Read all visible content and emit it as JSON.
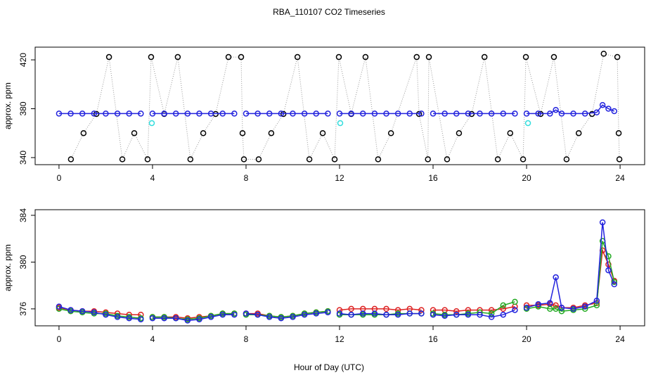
{
  "chart_data": [
    {
      "type": "scatter",
      "title": "RBA_110107  CO2 Timeseries",
      "ylabel": "approx. ppm",
      "xlim": [
        -1.02,
        25.05
      ],
      "xticks": [
        0,
        4,
        8,
        12,
        16,
        20,
        24
      ],
      "ylim": [
        334.2,
        430.4
      ],
      "yticks": [
        340,
        380,
        420
      ],
      "series": [
        {
          "color": "#000000",
          "line_color": "#999999",
          "line_style": "dotted",
          "x": [
            0.51,
            1.05,
            1.6,
            2.14,
            2.71,
            3.22,
            3.79,
            3.94,
            4.5,
            5.08,
            5.62,
            6.17,
            6.7,
            7.25,
            7.79,
            7.85,
            7.91,
            8.54,
            9.08,
            9.6,
            10.2,
            10.71,
            11.28,
            11.79,
            11.97,
            12.5,
            13.11,
            13.65,
            14.2,
            15.3,
            15.4,
            15.78,
            15.82,
            16.6,
            17.11,
            17.65,
            18.2,
            18.77,
            19.3,
            19.85,
            19.97,
            20.6,
            21.17,
            21.71,
            22.23,
            22.8,
            23.3,
            23.88,
            23.94,
            23.97
          ],
          "values": [
            338.6,
            360,
            375.7,
            422.3,
            338.6,
            360,
            338.6,
            422.3,
            375.7,
            422.3,
            338.6,
            360,
            375.7,
            422.3,
            422.3,
            360,
            338.6,
            338.6,
            360,
            375.7,
            422.3,
            338.6,
            360,
            338.6,
            422.3,
            375.7,
            422.3,
            338.6,
            360,
            422.3,
            375.7,
            338.6,
            422.3,
            338.6,
            360,
            375.7,
            422.3,
            338.6,
            360,
            338.6,
            422.3,
            375.7,
            422.3,
            338.6,
            360,
            375.7,
            425,
            422.3,
            360,
            338.6
          ]
        },
        {
          "color": "#2222dd",
          "line_style": "solid",
          "x": [
            0,
            0.5,
            1,
            1.5,
            2,
            2.5,
            3,
            3.5,
            3.9,
            4,
            4.5,
            5,
            5.5,
            6,
            6.5,
            7,
            7.5,
            7.9,
            8,
            8.5,
            9,
            9.5,
            10,
            10.5,
            11,
            11.5,
            11.9,
            12,
            12.5,
            13,
            13.5,
            14,
            14.5,
            15,
            15.5,
            15.9,
            16,
            16.5,
            17,
            17.5,
            18,
            18.5,
            19,
            19.5,
            19.9,
            20,
            20.5,
            21,
            21.25,
            21.5,
            22,
            22.5,
            23,
            23.25,
            23.5,
            23.75
          ],
          "values": [
            376,
            376,
            376,
            376,
            376,
            376,
            376,
            376,
            null,
            376,
            376,
            376,
            376,
            376,
            376,
            376,
            376,
            null,
            376,
            376,
            376,
            376,
            376,
            376,
            376,
            376,
            null,
            376,
            376,
            376,
            376,
            376,
            376,
            376,
            376,
            null,
            376,
            376,
            376,
            376,
            376,
            376,
            376,
            376,
            null,
            376,
            376,
            376,
            379,
            376,
            376,
            376,
            377,
            383,
            380,
            378
          ]
        },
        {
          "color": "#33dddd",
          "x": [
            3.97,
            12.03,
            20.06
          ],
          "values": [
            368.2,
            368.2,
            368.2
          ]
        }
      ]
    },
    {
      "type": "line",
      "ylabel": "approx. ppm",
      "xlabel": "Hour of Day (UTC)",
      "xlim": [
        -1.02,
        25.05
      ],
      "xticks": [
        0,
        4,
        8,
        12,
        16,
        20,
        24
      ],
      "ylim": [
        374.55,
        384.48
      ],
      "yticks": [
        376,
        380,
        384
      ],
      "series": [
        {
          "color": "#dd2222",
          "line_style": "solid",
          "x": [
            0,
            0.5,
            1,
            1.5,
            2,
            2.5,
            3,
            3.5,
            3.9,
            4,
            4.5,
            5,
            5.5,
            6,
            6.5,
            7,
            7.5,
            7.9,
            8,
            8.5,
            9,
            9.5,
            10,
            10.5,
            11,
            11.5,
            11.9,
            12,
            12.5,
            13,
            13.5,
            14,
            14.5,
            15,
            15.5,
            15.9,
            16,
            16.5,
            17,
            17.5,
            18,
            18.5,
            19,
            19.5,
            19.9,
            20,
            20.5,
            21,
            21.25,
            21.5,
            22,
            22.5,
            23,
            23.25,
            23.5,
            23.75
          ],
          "values": [
            376.1,
            375.9,
            375.8,
            375.8,
            375.7,
            375.6,
            375.5,
            375.5,
            null,
            375.3,
            375.3,
            375.3,
            375.2,
            375.3,
            375.4,
            375.6,
            375.6,
            null,
            375.6,
            375.6,
            375.4,
            375.3,
            375.4,
            375.6,
            375.7,
            375.8,
            null,
            375.9,
            376.0,
            376.0,
            376.0,
            376.0,
            375.9,
            376.0,
            375.9,
            null,
            375.9,
            375.9,
            375.8,
            375.9,
            375.9,
            375.9,
            376.0,
            376.2,
            null,
            376.3,
            376.3,
            376.4,
            376.3,
            376.1,
            376.1,
            376.3,
            376.5,
            381.0,
            379.8,
            378.4
          ]
        },
        {
          "color": "#22aa22",
          "line_style": "solid",
          "x": [
            0,
            0.5,
            1,
            1.5,
            2,
            2.5,
            3,
            3.5,
            3.9,
            4,
            4.5,
            5,
            5.5,
            6,
            6.5,
            7,
            7.5,
            7.9,
            8,
            8.5,
            9,
            9.5,
            10,
            10.5,
            11,
            11.5,
            11.9,
            12,
            12.5,
            13,
            13.5,
            14,
            14.5,
            15,
            15.5,
            15.9,
            16,
            16.5,
            17,
            17.5,
            18,
            18.5,
            19,
            19.5,
            19.9,
            20,
            20.5,
            21,
            21.25,
            21.5,
            22,
            22.5,
            23,
            23.25,
            23.5,
            23.75
          ],
          "values": [
            376.0,
            375.8,
            375.7,
            375.6,
            375.6,
            375.4,
            375.3,
            375.2,
            null,
            375.3,
            375.3,
            375.2,
            375.1,
            375.2,
            375.4,
            375.6,
            375.6,
            null,
            375.5,
            375.5,
            375.4,
            375.3,
            375.4,
            375.6,
            375.7,
            375.8,
            null,
            375.5,
            375.5,
            375.5,
            375.5,
            375.5,
            375.6,
            375.6,
            375.6,
            null,
            375.6,
            375.5,
            375.5,
            375.6,
            375.7,
            375.6,
            376.3,
            376.6,
            null,
            376.0,
            376.2,
            376.0,
            376.0,
            375.8,
            375.9,
            376.0,
            376.3,
            381.8,
            380.5,
            378.3
          ]
        },
        {
          "color": "#2222dd",
          "line_style": "solid",
          "x": [
            0,
            0.5,
            1,
            1.5,
            2,
            2.5,
            3,
            3.5,
            3.9,
            4,
            4.5,
            5,
            5.5,
            6,
            6.5,
            7,
            7.5,
            7.9,
            8,
            8.5,
            9,
            9.5,
            10,
            10.5,
            11,
            11.5,
            11.9,
            12,
            12.5,
            13,
            13.5,
            14,
            14.5,
            15,
            15.5,
            15.9,
            16,
            16.5,
            17,
            17.5,
            18,
            18.5,
            19,
            19.5,
            19.9,
            20,
            20.5,
            21,
            21.25,
            21.5,
            22,
            22.5,
            23,
            23.25,
            23.5,
            23.75
          ],
          "values": [
            376.2,
            375.9,
            375.8,
            375.7,
            375.5,
            375.3,
            375.2,
            375.1,
            null,
            375.2,
            375.2,
            375.2,
            375.0,
            375.1,
            375.3,
            375.5,
            375.5,
            null,
            375.6,
            375.5,
            375.3,
            375.2,
            375.3,
            375.5,
            375.6,
            375.7,
            null,
            375.6,
            375.5,
            375.6,
            375.6,
            375.5,
            375.5,
            375.6,
            375.6,
            null,
            375.5,
            375.4,
            375.5,
            375.5,
            375.5,
            375.3,
            375.5,
            375.9,
            null,
            376.1,
            376.4,
            376.5,
            378.7,
            376.1,
            376.0,
            376.2,
            376.7,
            383.4,
            379.3,
            378.1
          ]
        }
      ]
    }
  ]
}
